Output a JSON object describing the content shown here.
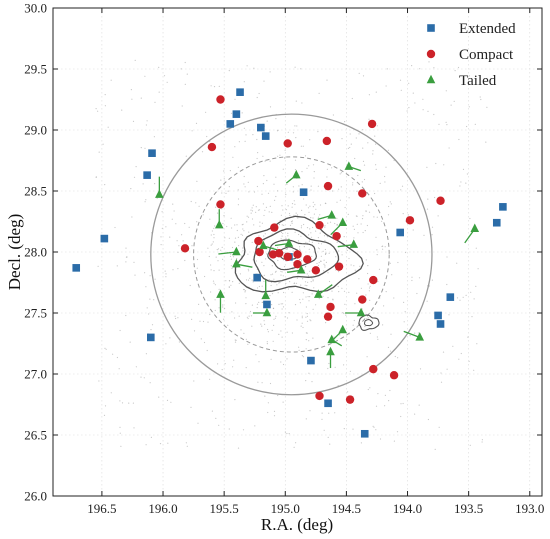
{
  "chart_data": {
    "type": "scatter",
    "xlabel": "R.A. (deg)",
    "ylabel": "Decl. (deg)",
    "xlim": [
      196.9,
      192.9
    ],
    "ylim": [
      26.0,
      30.0
    ],
    "x_inverted": true,
    "xticks": [
      196.5,
      196.0,
      195.5,
      195.0,
      194.5,
      194.0,
      193.5,
      193.0
    ],
    "xtick_labels": [
      "196.5",
      "196.0",
      "195.5",
      "195.0",
      "194.5",
      "194.0",
      "193.5",
      "193.0"
    ],
    "yticks": [
      26.0,
      26.5,
      27.0,
      27.5,
      28.0,
      28.5,
      29.0,
      29.5,
      30.0
    ],
    "ytick_labels": [
      "26.0",
      "26.5",
      "27.0",
      "27.5",
      "28.0",
      "28.5",
      "29.0",
      "29.5",
      "30.0"
    ],
    "grid": true,
    "legend_position": "top-right",
    "center": [
      194.95,
      27.98
    ],
    "circles_radius_deg": [
      0.8,
      1.15
    ],
    "series": [
      {
        "name": "Extended",
        "marker": "square",
        "color": "#2b6ca8",
        "points": [
          [
            195.37,
            29.31
          ],
          [
            195.4,
            29.13
          ],
          [
            195.45,
            29.05
          ],
          [
            195.2,
            29.02
          ],
          [
            195.16,
            28.95
          ],
          [
            196.09,
            28.81
          ],
          [
            196.13,
            28.63
          ],
          [
            196.48,
            28.11
          ],
          [
            196.71,
            27.87
          ],
          [
            196.1,
            27.3
          ],
          [
            194.85,
            28.49
          ],
          [
            195.23,
            27.79
          ],
          [
            195.15,
            27.57
          ],
          [
            194.97,
            27.96
          ],
          [
            194.79,
            27.11
          ],
          [
            194.65,
            26.76
          ],
          [
            194.35,
            26.51
          ],
          [
            194.06,
            28.16
          ],
          [
            193.65,
            27.63
          ],
          [
            193.75,
            27.48
          ],
          [
            193.73,
            27.41
          ],
          [
            193.27,
            28.24
          ],
          [
            193.22,
            28.37
          ]
        ]
      },
      {
        "name": "Compact",
        "marker": "circle",
        "color": "#cc2229",
        "points": [
          [
            195.53,
            29.25
          ],
          [
            195.6,
            28.86
          ],
          [
            194.98,
            28.89
          ],
          [
            194.66,
            28.91
          ],
          [
            194.29,
            29.05
          ],
          [
            194.65,
            28.54
          ],
          [
            194.37,
            28.48
          ],
          [
            195.53,
            28.39
          ],
          [
            195.82,
            28.03
          ],
          [
            195.22,
            28.09
          ],
          [
            195.21,
            28.0
          ],
          [
            195.09,
            28.2
          ],
          [
            195.1,
            27.98
          ],
          [
            195.05,
            27.99
          ],
          [
            194.98,
            27.96
          ],
          [
            194.9,
            27.98
          ],
          [
            194.82,
            27.94
          ],
          [
            194.75,
            27.85
          ],
          [
            194.9,
            27.9
          ],
          [
            194.72,
            28.22
          ],
          [
            194.58,
            28.13
          ],
          [
            194.56,
            27.88
          ],
          [
            194.63,
            27.55
          ],
          [
            194.65,
            27.47
          ],
          [
            194.37,
            27.61
          ],
          [
            194.28,
            27.77
          ],
          [
            193.98,
            28.26
          ],
          [
            193.73,
            28.42
          ],
          [
            194.47,
            26.79
          ],
          [
            194.28,
            27.04
          ],
          [
            194.11,
            26.99
          ],
          [
            194.72,
            26.82
          ]
        ]
      },
      {
        "name": "Tailed",
        "marker": "triangle",
        "color": "#3a9e3f",
        "points": [
          [
            196.03,
            28.47
          ],
          [
            195.54,
            28.22
          ],
          [
            195.4,
            28.0
          ],
          [
            195.4,
            27.9
          ],
          [
            195.53,
            27.65
          ],
          [
            195.18,
            28.05
          ],
          [
            195.16,
            27.64
          ],
          [
            195.15,
            27.5
          ],
          [
            194.97,
            28.07
          ],
          [
            194.91,
            28.63
          ],
          [
            194.87,
            27.85
          ],
          [
            194.73,
            27.65
          ],
          [
            194.62,
            28.3
          ],
          [
            194.53,
            28.24
          ],
          [
            194.44,
            28.06
          ],
          [
            194.48,
            28.7
          ],
          [
            194.53,
            27.36
          ],
          [
            194.62,
            27.28
          ],
          [
            194.63,
            27.18
          ],
          [
            194.38,
            27.5
          ],
          [
            193.9,
            27.3
          ],
          [
            193.45,
            28.19
          ]
        ]
      }
    ],
    "legend_entries": [
      "Extended",
      "Compact",
      "Tailed"
    ]
  }
}
